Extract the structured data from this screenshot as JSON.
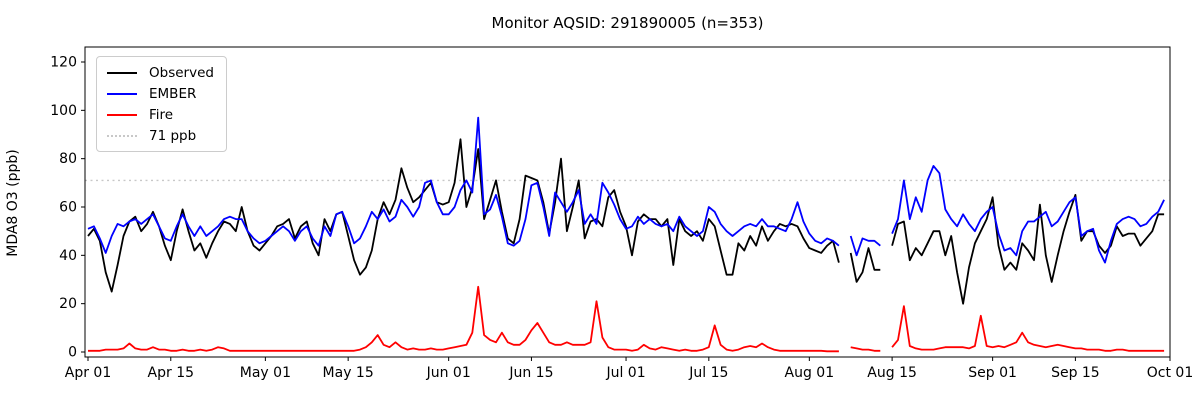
{
  "chart_data": {
    "type": "line",
    "title": "Monitor AQSID: 291890005 (n=353)",
    "xlabel": "",
    "ylabel": "MDA8 O3 (ppb)",
    "ylim": [
      -2,
      126
    ],
    "yticks": [
      0,
      20,
      40,
      60,
      80,
      100,
      120
    ],
    "grid": false,
    "legend_position": "upper-left",
    "x_axis": {
      "start": "Apr 01",
      "end": "Oct 01",
      "days_total": 183,
      "tick_days": [
        0,
        14,
        30,
        44,
        61,
        75,
        91,
        105,
        122,
        136,
        153,
        167,
        183
      ],
      "tick_labels": [
        "Apr 01",
        "Apr 15",
        "May 01",
        "May 15",
        "Jun 01",
        "Jun 15",
        "Jul 01",
        "Jul 15",
        "Aug 01",
        "Aug 15",
        "Sep 01",
        "Sep 15",
        "Oct 01"
      ]
    },
    "reference_line": {
      "label": "71 ppb",
      "value": 71,
      "color": "#c8c8c8",
      "style": "dotted"
    },
    "legend": {
      "entries": [
        {
          "label": "Observed",
          "color": "#000000",
          "style": "solid"
        },
        {
          "label": "EMBER",
          "color": "#0000ff",
          "style": "solid"
        },
        {
          "label": "Fire",
          "color": "#ff0000",
          "style": "solid"
        },
        {
          "label": "71 ppb",
          "color": "#c8c8c8",
          "style": "dotted"
        }
      ]
    },
    "series": [
      {
        "name": "Observed",
        "color": "#000000",
        "values": [
          48,
          51,
          46,
          33,
          25,
          36,
          48,
          54,
          56,
          50,
          53,
          58,
          52,
          44,
          38,
          50,
          59,
          50,
          42,
          45,
          39,
          45,
          50,
          54,
          53,
          50,
          60,
          50,
          44,
          42,
          45,
          48,
          52,
          53,
          55,
          47,
          52,
          54,
          45,
          40,
          55,
          50,
          57,
          58,
          48,
          38,
          32,
          35,
          42,
          55,
          62,
          57,
          63,
          76,
          68,
          62,
          64,
          67,
          70,
          62,
          61,
          62,
          70,
          88,
          60,
          68,
          84,
          55,
          63,
          71,
          58,
          47,
          45,
          55,
          73,
          72,
          71,
          62,
          49,
          62,
          80,
          50,
          60,
          71,
          47,
          54,
          55,
          52,
          64,
          67,
          58,
          52,
          40,
          54,
          57,
          55,
          55,
          52,
          55,
          36,
          55,
          50,
          48,
          50,
          46,
          55,
          52,
          42,
          32,
          32,
          45,
          42,
          48,
          44,
          52,
          46,
          50,
          53,
          52,
          53,
          52,
          47,
          43,
          42,
          41,
          44,
          46,
          37,
          null,
          41,
          29,
          33,
          43,
          34,
          34,
          null,
          44,
          53,
          54,
          38,
          43,
          40,
          45,
          50,
          50,
          40,
          48,
          33,
          20,
          35,
          45,
          50,
          55,
          64,
          44,
          34,
          37,
          34,
          45,
          42,
          38,
          61,
          40,
          29,
          40,
          50,
          58,
          65,
          46,
          50,
          50,
          44,
          41,
          44,
          52,
          48,
          49,
          49,
          44,
          47,
          50,
          57,
          57
        ]
      },
      {
        "name": "EMBER",
        "color": "#0000ff",
        "values": [
          51,
          52,
          47,
          41,
          48,
          53,
          52,
          54,
          55,
          53,
          55,
          57,
          52,
          47,
          46,
          52,
          57,
          52,
          48,
          52,
          48,
          50,
          52,
          55,
          56,
          55,
          55,
          50,
          47,
          45,
          46,
          48,
          50,
          52,
          50,
          46,
          50,
          52,
          47,
          44,
          52,
          48,
          57,
          58,
          52,
          45,
          47,
          52,
          58,
          55,
          59,
          54,
          56,
          63,
          60,
          56,
          60,
          70,
          71,
          62,
          57,
          57,
          60,
          67,
          71,
          66,
          97,
          57,
          59,
          65,
          56,
          45,
          44,
          46,
          55,
          69,
          70,
          60,
          48,
          66,
          62,
          58,
          62,
          67,
          53,
          57,
          53,
          70,
          66,
          61,
          55,
          51,
          52,
          56,
          53,
          55,
          53,
          52,
          53,
          50,
          56,
          52,
          50,
          48,
          50,
          60,
          58,
          53,
          50,
          48,
          50,
          52,
          53,
          52,
          55,
          52,
          52,
          51,
          50,
          55,
          62,
          54,
          49,
          46,
          45,
          47,
          46,
          44,
          null,
          48,
          40,
          47,
          46,
          46,
          44,
          null,
          49,
          55,
          71,
          55,
          64,
          58,
          71,
          77,
          74,
          59,
          55,
          52,
          57,
          53,
          50,
          55,
          58,
          60,
          49,
          42,
          43,
          40,
          50,
          54,
          54,
          56,
          58,
          52,
          54,
          58,
          62,
          64,
          48,
          50,
          51,
          42,
          37,
          46,
          53,
          55,
          56,
          55,
          52,
          53,
          56,
          58,
          63
        ]
      },
      {
        "name": "Fire",
        "color": "#ff0000",
        "values": [
          0.5,
          0.5,
          0.5,
          1,
          1,
          1,
          1.5,
          3.5,
          1.5,
          1,
          1,
          2,
          1,
          1,
          0.5,
          0.5,
          1,
          0.5,
          0.5,
          1,
          0.5,
          1,
          2,
          1.5,
          0.5,
          0.5,
          0.5,
          0.5,
          0.5,
          0.5,
          0.5,
          0.5,
          0.5,
          0.5,
          0.5,
          0.5,
          0.5,
          0.5,
          0.5,
          0.5,
          0.5,
          0.5,
          0.5,
          0.5,
          0.5,
          0.5,
          1,
          2,
          4,
          7,
          3,
          2,
          4,
          2,
          1,
          1.5,
          1,
          1,
          1.5,
          1,
          1,
          1.5,
          2,
          2.5,
          3,
          8,
          27,
          7,
          5,
          4,
          8,
          4,
          3,
          3,
          5,
          9,
          12,
          8,
          4,
          3,
          3,
          4,
          3,
          3,
          3,
          4,
          21,
          6,
          2,
          1,
          1,
          1,
          0.5,
          1,
          3,
          1.5,
          1,
          2,
          1.5,
          1,
          0.5,
          1,
          0.5,
          0.5,
          1,
          2,
          11,
          3,
          1,
          0.5,
          1,
          2,
          2.5,
          2,
          3.5,
          2,
          1,
          0.5,
          0.5,
          0.5,
          0.5,
          0.5,
          0.5,
          0.5,
          0.5,
          0.3,
          0.3,
          0.3,
          null,
          2,
          1.5,
          1,
          1,
          0.5,
          0.5,
          null,
          2,
          5,
          19,
          2.5,
          1.5,
          1,
          1,
          1,
          1.5,
          2,
          2,
          2,
          2,
          1.5,
          2.5,
          15,
          2.5,
          2,
          2.5,
          2,
          3,
          4,
          8,
          4,
          3,
          2.5,
          2,
          2.5,
          3,
          2.5,
          2,
          1.5,
          1.5,
          1,
          1,
          1,
          0.5,
          0.5,
          1,
          1,
          0.5,
          0.5,
          0.5,
          0.5,
          0.5,
          0.5,
          0.5
        ]
      }
    ]
  }
}
